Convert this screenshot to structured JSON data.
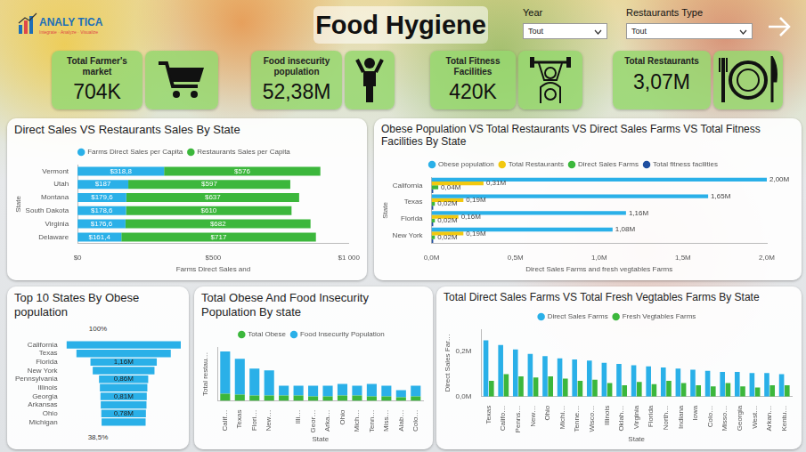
{
  "header": {
    "logo": "ANALY TICA",
    "tagline": "Integrate · Analyze · Visualize",
    "title": "Food Hygiene",
    "filters": [
      {
        "label": "Year",
        "value": "Tout"
      },
      {
        "label": "Restaurants Type",
        "value": "Tout"
      }
    ]
  },
  "kpis": [
    {
      "label": "Total Farmer's market",
      "value": "704K"
    },
    {
      "label": "Food insecurity population",
      "value": "52,38M"
    },
    {
      "label": "Total Fitness Facilities",
      "value": "420K"
    },
    {
      "label": "Total Restaurants",
      "value": "3,07M"
    }
  ],
  "chart_data": [
    {
      "type": "bar",
      "title": "Direct Sales VS Restaurants Sales By State",
      "orientation": "horizontal",
      "stacked": true,
      "x_label": "Farms Direct Sales and",
      "y_label": "State",
      "categories": [
        "Vermont",
        "Utah",
        "Montana",
        "South Dakota",
        "Virginia",
        "Delaware"
      ],
      "series": [
        {
          "name": "Farms Direct Sales per Capita",
          "color": "#2ab0e8",
          "values": [
            318.8,
            187,
            179.6,
            178.6,
            176.6,
            161.4
          ],
          "value_labels": [
            "$318,8",
            "$187",
            "$179,6",
            "$178,6",
            "$176,6",
            "$161,4"
          ]
        },
        {
          "name": "Restaurants Sales per Capita",
          "color": "#3cb73c",
          "values": [
            576,
            597,
            637,
            610,
            682,
            717
          ],
          "value_labels": [
            "$576",
            "$597",
            "$637",
            "$610",
            "$682",
            "$717"
          ]
        }
      ],
      "xlim": [
        0,
        1000
      ],
      "xticks": [
        {
          "value": 0,
          "label": "$0"
        },
        {
          "value": 500,
          "label": "$500"
        },
        {
          "value": 1000,
          "label": "$1 000"
        }
      ],
      "legend": "top",
      "grid": false,
      "data_labels": true
    },
    {
      "type": "bar",
      "title": "Obese Population VS Total Restaurants VS Direct Sales Farms VS Total Fitness Facilities By State",
      "orientation": "horizontal",
      "x_label": "Direct Sales Farms and fresh vegtables Farms",
      "y_label": "State",
      "categories": [
        "California",
        "Texas",
        "Florida",
        "New York"
      ],
      "series": [
        {
          "name": "Obese population",
          "color": "#2ab0e8",
          "values": [
            2.0,
            1.65,
            1.16,
            1.08
          ],
          "value_labels": [
            "2,00M",
            "1,65M",
            "1,16M",
            "1,08M"
          ]
        },
        {
          "name": "Total Restaurants",
          "color": "#f2c80f",
          "values": [
            0.31,
            0.19,
            0.16,
            0.19
          ],
          "value_labels": [
            "0,31M",
            "0,19M",
            "0,16M",
            "0,19M"
          ]
        },
        {
          "name": "Direct Sales Farms",
          "color": "#3cb73c",
          "values": [
            0.04,
            0.02,
            0.02,
            0.02
          ],
          "value_labels": [
            "0,04M",
            "0,02M",
            "0,02M",
            "0,02M"
          ]
        },
        {
          "name": "Total fitness facilities",
          "color": "#1f4fa0",
          "values": [
            0.01,
            0.01,
            0.01,
            0.01
          ],
          "value_labels": [
            null,
            null,
            null,
            null
          ]
        }
      ],
      "xlim": [
        0,
        2.0
      ],
      "xticks": [
        {
          "value": 0,
          "label": "0,0M"
        },
        {
          "value": 0.5,
          "label": "0,5M"
        },
        {
          "value": 1.0,
          "label": "1,0M"
        },
        {
          "value": 1.5,
          "label": "1,5M"
        },
        {
          "value": 2.0,
          "label": "2,0M"
        }
      ],
      "legend": "top",
      "grid": false,
      "data_labels": true
    },
    {
      "type": "funnel",
      "title": "Top 10 States By Obese population",
      "categories": [
        "California",
        "Texas",
        "Florida",
        "New York",
        "Pennsylvania",
        "Illinois",
        "Georgia",
        "Arkansas",
        "Ohio",
        "Michigan"
      ],
      "values": [
        2.0,
        1.65,
        1.16,
        1.08,
        0.86,
        0.83,
        0.81,
        0.8,
        0.78,
        0.77
      ],
      "value_labels": [
        null,
        null,
        "1,16M",
        null,
        "0,86M",
        null,
        "0,81M",
        null,
        "0,78M",
        null
      ],
      "color": "#2ab0e8",
      "annotations": [
        "100%",
        "38,5%"
      ],
      "xlim": [
        -1,
        1
      ],
      "tick_labels": "y",
      "grid": false,
      "data_labels": true
    },
    {
      "type": "bar",
      "title": "Total Obese And Food Insecurity Population By state",
      "stacked": true,
      "x_label": "State",
      "y_label": "Total restau…",
      "categories": [
        "Calif…",
        "Texas",
        "Flori…",
        "New…",
        null,
        "Illi…",
        "Geor…",
        "Arka…",
        "Ohio",
        "Mich…",
        "Tenn…",
        "Miss…",
        "Alab…",
        "Colo…"
      ],
      "series": [
        {
          "name": "Total Obese",
          "color": "#3cb73c",
          "values": [
            0.8,
            0.7,
            0.6,
            0.6,
            0.6,
            0.6,
            0.5,
            0.5,
            0.6,
            0.6,
            0.5,
            0.5,
            0.4,
            0.5
          ]
        },
        {
          "name": "Food Insecurity Population",
          "color": "#2ab0e8",
          "values": [
            4.7,
            4.0,
            3.0,
            2.8,
            1.1,
            1.1,
            1.2,
            1.2,
            1.3,
            1.1,
            1.4,
            1.2,
            0.8,
            1.2
          ]
        }
      ],
      "ylim": [
        0,
        6
      ],
      "tick_labels": "x",
      "legend": "top",
      "grid": false
    },
    {
      "type": "bar",
      "title": "Total Direct Sales Farms VS Total Fresh Vegtables Farms By State",
      "x_label": "State",
      "y_label": "Direct Sales Far…",
      "categories": [
        "Texas",
        "Califo…",
        "Penns…",
        "New…",
        "Ohio",
        "Michi…",
        "Tenne…",
        "Wisco…",
        "Illinois",
        "Oklah…",
        "Virginia",
        "Florida",
        "North…",
        "Indiana",
        "Iowa",
        "Colo…",
        "Misso…",
        "Georgia",
        "West…",
        "Arkan…",
        "Kentu…"
      ],
      "series": [
        {
          "name": "Direct Sales Farms",
          "color": "#2ab0e8",
          "values": [
            0.25,
            0.23,
            0.21,
            0.19,
            0.18,
            0.17,
            0.165,
            0.16,
            0.15,
            0.145,
            0.14,
            0.135,
            0.13,
            0.125,
            0.12,
            0.115,
            0.11,
            0.11,
            0.105,
            0.105,
            0.1
          ]
        },
        {
          "name": "Fresh Vegtables Farms",
          "color": "#3cb73c",
          "values": [
            0.07,
            0.1,
            0.09,
            0.085,
            0.09,
            0.08,
            0.07,
            0.075,
            0.06,
            0.05,
            0.065,
            0.055,
            0.07,
            0.06,
            0.05,
            0.045,
            0.06,
            0.045,
            0.04,
            0.05,
            0.05
          ]
        }
      ],
      "ylim": [
        0,
        0.3
      ],
      "yticks": [
        {
          "value": 0,
          "label": "0,0M"
        },
        {
          "value": 0.2,
          "label": "0,2M"
        }
      ],
      "legend": "top",
      "grid": false
    }
  ]
}
